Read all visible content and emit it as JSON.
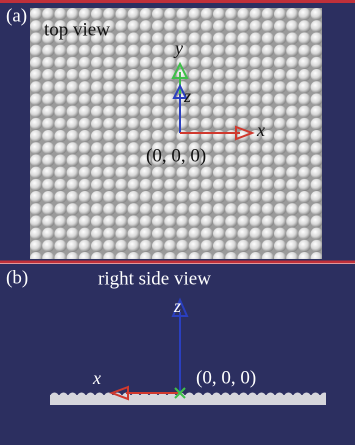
{
  "panel_a": {
    "letter": "(a)",
    "title": "top view",
    "axes": {
      "y": "y",
      "z": "z",
      "x": "x"
    },
    "origin": "(0, 0, 0)"
  },
  "panel_b": {
    "letter": "(b)",
    "title": "right side view",
    "axes": {
      "z": "z",
      "x": "x"
    },
    "origin": "(0, 0, 0)"
  }
}
